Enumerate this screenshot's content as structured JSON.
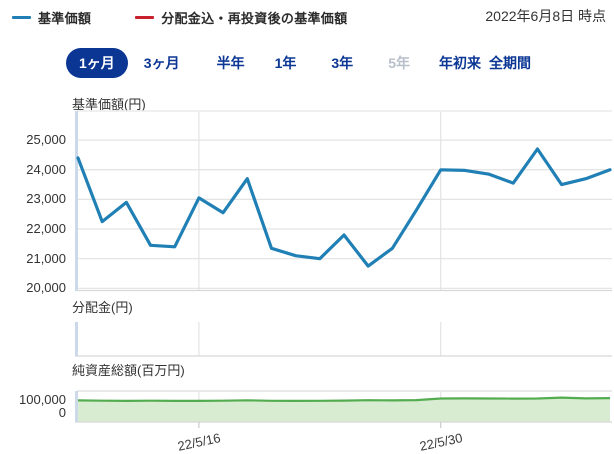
{
  "header": {
    "legend": [
      {
        "name": "nav-price-series",
        "label": "基準価額",
        "color": "#2080b5"
      },
      {
        "name": "reinvested-nav-series",
        "label": "分配金込・再投資後の基準価額",
        "color": "#c8202f"
      }
    ],
    "as_of": "2022年6月8日 時点"
  },
  "tabs": [
    {
      "name": "tab-1month",
      "label": "1ヶ月",
      "state": "active"
    },
    {
      "name": "tab-3months",
      "label": "3ヶ月",
      "state": "normal"
    },
    {
      "name": "tab-6months",
      "label": "半年",
      "state": "normal"
    },
    {
      "name": "tab-1year",
      "label": "1年",
      "state": "normal"
    },
    {
      "name": "tab-3years",
      "label": "3年",
      "state": "normal"
    },
    {
      "name": "tab-5years",
      "label": "5年",
      "state": "disabled"
    },
    {
      "name": "tab-ytd",
      "label": "年初来",
      "state": "normal"
    },
    {
      "name": "tab-all",
      "label": "全期間",
      "state": "normal"
    }
  ],
  "colors": {
    "accent_navy": "#0b3694",
    "nav_line": "#2080b5",
    "reinvested_line": "#c8202f",
    "assets_line": "#54ac50",
    "assets_fill": "#d7ecd1",
    "grid": "#e3e3e3",
    "axis_band": "#ccd9e9"
  },
  "chart_data": [
    {
      "type": "line",
      "title": "基準価額(円)",
      "x": [
        "22/5/9",
        "22/5/10",
        "22/5/11",
        "22/5/12",
        "22/5/13",
        "22/5/16",
        "22/5/17",
        "22/5/18",
        "22/5/19",
        "22/5/20",
        "22/5/23",
        "22/5/24",
        "22/5/25",
        "22/5/26",
        "22/5/27",
        "22/5/30",
        "22/5/31",
        "22/6/1",
        "22/6/2",
        "22/6/3",
        "22/6/6",
        "22/6/7",
        "22/6/8"
      ],
      "series": [
        {
          "name": "基準価額",
          "color": "#2080b5",
          "values": [
            24400,
            22250,
            22900,
            21450,
            21400,
            23050,
            22550,
            23700,
            21350,
            21100,
            21000,
            21800,
            20750,
            21350,
            22650,
            24000,
            23980,
            23850,
            23550,
            24700,
            23500,
            23700,
            24000
          ]
        }
      ],
      "ylim": [
        19900,
        26000
      ],
      "yticks": [
        25000,
        24000,
        23000,
        22000,
        21000,
        20000
      ],
      "ytick_labels": [
        "25,000",
        "24,000",
        "23,000",
        "22,000",
        "21,000",
        "20,000"
      ],
      "xtick_labels": [
        {
          "label": "22/5/16",
          "index": 5
        },
        {
          "label": "22/5/30",
          "index": 15
        }
      ],
      "grid": true,
      "legend_position": "top"
    },
    {
      "type": "line",
      "title": "分配金(円)",
      "x": [],
      "series": [],
      "grid": true
    },
    {
      "type": "area",
      "title": "純資産総額(百万円)",
      "x": [
        "22/5/9",
        "22/5/10",
        "22/5/11",
        "22/5/12",
        "22/5/13",
        "22/5/16",
        "22/5/17",
        "22/5/18",
        "22/5/19",
        "22/5/20",
        "22/5/23",
        "22/5/24",
        "22/5/25",
        "22/5/26",
        "22/5/27",
        "22/5/30",
        "22/5/31",
        "22/6/1",
        "22/6/2",
        "22/6/3",
        "22/6/6",
        "22/6/7",
        "22/6/8"
      ],
      "series": [
        {
          "name": "純資産総額",
          "color": "#54ac50",
          "fill": "#d7ecd1",
          "values": [
            98000,
            97000,
            96000,
            97000,
            96000,
            96000,
            97000,
            98500,
            96500,
            96000,
            96500,
            97500,
            99000,
            98000,
            99500,
            107000,
            107500,
            107000,
            106500,
            107000,
            111000,
            107500,
            108500
          ]
        }
      ],
      "ylim": [
        0,
        150000
      ],
      "yticks": [
        100000,
        0
      ],
      "ytick_labels": [
        "100,000",
        "0"
      ],
      "grid": true
    }
  ]
}
